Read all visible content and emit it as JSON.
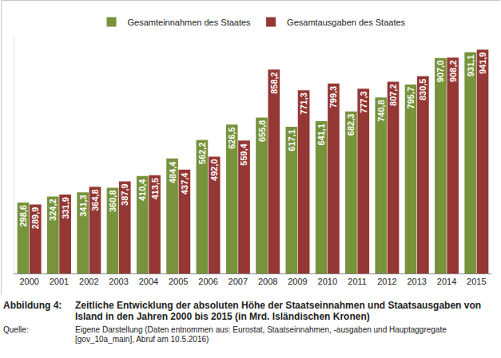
{
  "chart_data": {
    "type": "bar",
    "categories": [
      "2000",
      "2001",
      "2002",
      "2003",
      "2004",
      "2005",
      "2006",
      "2007",
      "2008",
      "2009",
      "2010",
      "2011",
      "2012",
      "2013",
      "2014",
      "2015"
    ],
    "series": [
      {
        "name": "Gesamteinnahmen des Staates",
        "color": "#77933c",
        "values": [
          298.6,
          324.2,
          341.3,
          360.8,
          410.4,
          484.4,
          562.2,
          626.5,
          655.8,
          617.1,
          641.1,
          682.3,
          740.8,
          795.7,
          907.0,
          931.1
        ],
        "value_labels": [
          "298,6",
          "324,2",
          "341,3",
          "360,8",
          "410,4",
          "484,4",
          "562,2",
          "626,5",
          "655,8",
          "617,1",
          "641,1",
          "682,3",
          "740,8",
          "795,7",
          "907,0",
          "931,1"
        ]
      },
      {
        "name": "Gesamtausgaben des Staates",
        "color": "#953735",
        "values": [
          289.9,
          331.9,
          364.8,
          387.9,
          413.5,
          437.4,
          492.0,
          559.4,
          858.2,
          771.3,
          799.3,
          777.3,
          807.2,
          830.5,
          908.2,
          941.9
        ],
        "value_labels": [
          "289,9",
          "331,9",
          "364,8",
          "387,9",
          "413,5",
          "437,4",
          "492,0",
          "559,4",
          "858,2",
          "771,3",
          "799,3",
          "777,3",
          "807,2",
          "830,5",
          "908,2",
          "941,9"
        ]
      }
    ],
    "ylim": [
      0,
      1000
    ],
    "yticks": [],
    "tick_labels": "x",
    "data_labels": true,
    "legend": "top",
    "grid": false
  },
  "caption": {
    "label": "Abbildung 4:",
    "text": "Zeitliche Entwicklung der absoluten Höhe der Staatseinnahmen und Staatsausgaben von Island in den Jahren 2000 bis 2015 (in Mrd. Isländischen Kronen)"
  },
  "source": {
    "label": "Quelle:",
    "text": "Eigene Darstellung (Daten entnommen aus: Eurostat, Staatseinnahmen, -ausgaben und Hauptaggregate [gov_10a_main], Abruf am 10.5.2016)"
  }
}
